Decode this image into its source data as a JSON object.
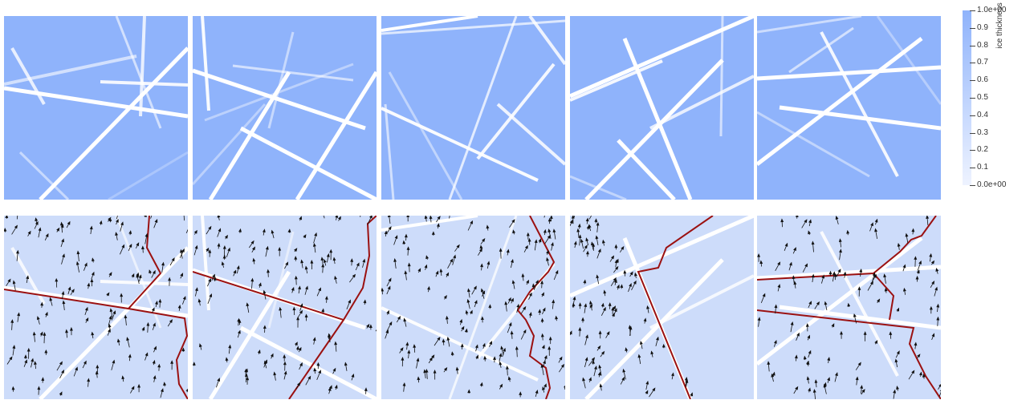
{
  "colorbar": {
    "title": "ice thickness (m)",
    "ticks": [
      "1.0e+00",
      "0.9",
      "0.8",
      "0.7",
      "0.6",
      "0.5",
      "0.4",
      "0.3",
      "0.2",
      "0.1",
      "0.0e+00"
    ],
    "color_high": "#8fb3fb",
    "color_low": "#eef3ff"
  },
  "colors": {
    "top_background": "#8fb3fb",
    "bottom_background": "#cddcfa",
    "lead_white": "#ffffff",
    "crack_red": "#9b1111",
    "arrow_black": "#111111"
  }
}
